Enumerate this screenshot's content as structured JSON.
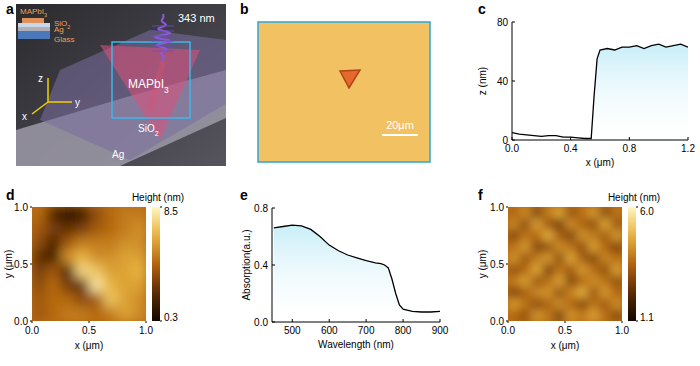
{
  "panel_labels": [
    "a",
    "b",
    "c",
    "d",
    "e",
    "f"
  ],
  "schematic": {
    "wavelength_label": "343 nm",
    "stack_labels": [
      "MAPbI3",
      "SiO2",
      "Ag",
      "Glass"
    ],
    "axis_labels": [
      "z",
      "x",
      "y"
    ],
    "region_labels": [
      "MAPbI3",
      "SiO2",
      "Ag"
    ]
  },
  "microscope": {
    "scale_bar": "20μm"
  },
  "chart_data": [
    {
      "type": "line",
      "x_label": "x (μm)",
      "y_label": "z (nm)",
      "x": [
        0,
        0.05,
        0.1,
        0.15,
        0.2,
        0.25,
        0.3,
        0.35,
        0.4,
        0.45,
        0.5,
        0.54,
        0.56,
        0.58,
        0.6,
        0.65,
        0.7,
        0.75,
        0.8,
        0.85,
        0.9,
        0.95,
        1.0,
        1.05,
        1.1,
        1.15,
        1.2
      ],
      "values": [
        5,
        4,
        3.5,
        3,
        2.5,
        3,
        3,
        2,
        2,
        1.5,
        1,
        1,
        30,
        55,
        61,
        62,
        61,
        63,
        63,
        64,
        62,
        64,
        65,
        63,
        64,
        65,
        63
      ],
      "color": "#000000",
      "xlim": [
        0,
        1.2
      ],
      "xticks": [
        {
          "value": 0,
          "label": "0.0"
        },
        0.4,
        0.8,
        1.2
      ],
      "ylim": [
        0,
        80
      ],
      "yticks": [
        0,
        40,
        80
      ]
    },
    {
      "type": "heatmap",
      "x_label": "x (μm)",
      "y_label": "y (μm)",
      "xlim": [
        0,
        1
      ],
      "xticks": [
        {
          "value": 0,
          "label": "0.0"
        },
        0.5,
        {
          "value": 1,
          "label": "1.0"
        }
      ],
      "ylim": [
        0,
        1
      ],
      "yticks": [
        {
          "value": 0,
          "label": "0.0"
        },
        0.5,
        {
          "value": 1,
          "label": "1.0"
        }
      ],
      "cells": [
        [
          4.5,
          2.0,
          1.0,
          1.5,
          3.5,
          4.5,
          5.0,
          5.0
        ],
        [
          4.0,
          3.0,
          2.5,
          3.0,
          4.0,
          4.5,
          5.0,
          5.5
        ],
        [
          3.5,
          2.0,
          4.0,
          5.0,
          5.0,
          5.0,
          5.5,
          5.5
        ],
        [
          2.5,
          1.5,
          5.5,
          6.5,
          5.5,
          5.5,
          6.0,
          6.0
        ],
        [
          3.0,
          4.0,
          2.0,
          7.5,
          7.0,
          6.0,
          6.0,
          6.5
        ],
        [
          3.5,
          4.5,
          3.0,
          2.5,
          8.0,
          6.5,
          6.0,
          6.0
        ],
        [
          4.0,
          4.5,
          4.5,
          3.5,
          4.0,
          7.0,
          6.0,
          5.5
        ],
        [
          4.0,
          4.5,
          5.0,
          5.0,
          4.5,
          5.0,
          6.0,
          5.5
        ]
      ],
      "colorbar": {
        "title": "Height (nm)",
        "range": [
          0.3,
          8.5
        ],
        "ticks": [
          0.3,
          8.5
        ]
      }
    },
    {
      "type": "line",
      "x_label": "Wavelength (nm)",
      "y_label": "Absorption(a.u.)",
      "x": [
        450,
        475,
        500,
        525,
        550,
        575,
        600,
        625,
        650,
        675,
        700,
        725,
        740,
        750,
        760,
        770,
        780,
        790,
        800,
        825,
        850,
        875,
        900
      ],
      "values": [
        0.66,
        0.67,
        0.68,
        0.675,
        0.65,
        0.6,
        0.54,
        0.5,
        0.47,
        0.45,
        0.43,
        0.415,
        0.41,
        0.4,
        0.38,
        0.3,
        0.2,
        0.12,
        0.09,
        0.075,
        0.07,
        0.07,
        0.075
      ],
      "color": "#000000",
      "xlim": [
        445,
        900
      ],
      "xticks": [
        500,
        600,
        700,
        800,
        900
      ],
      "ylim": [
        0,
        0.8
      ],
      "yticks": [
        {
          "value": 0,
          "label": "0.0"
        },
        0.4,
        0.8
      ]
    },
    {
      "type": "heatmap",
      "x_label": "x (μm)",
      "y_label": "y (μm)",
      "xlim": [
        0,
        1
      ],
      "xticks": [
        {
          "value": 0,
          "label": "0.0"
        },
        0.5,
        {
          "value": 1,
          "label": "1.0"
        }
      ],
      "ylim": [
        0,
        1
      ],
      "yticks": [
        {
          "value": 0,
          "label": "0.0"
        },
        0.5,
        {
          "value": 1,
          "label": "1.0"
        }
      ],
      "cells": [
        [
          3.5,
          4.2,
          2.8,
          3.9,
          4.6,
          3.1,
          3.7,
          4.4,
          2.9,
          3.8
        ],
        [
          4.1,
          3.0,
          4.5,
          3.3,
          2.7,
          4.2,
          3.5,
          3.0,
          4.6,
          3.2
        ],
        [
          2.9,
          3.8,
          3.6,
          4.7,
          3.4,
          2.8,
          4.3,
          3.9,
          3.3,
          4.4
        ],
        [
          3.7,
          4.4,
          2.9,
          3.1,
          4.2,
          3.8,
          3.0,
          4.5,
          3.6,
          2.8
        ],
        [
          4.3,
          3.2,
          3.9,
          4.4,
          3.0,
          4.6,
          3.4,
          2.9,
          4.1,
          3.7
        ],
        [
          3.1,
          3.6,
          4.6,
          2.8,
          3.8,
          3.3,
          4.4,
          3.7,
          3.0,
          4.5
        ],
        [
          3.9,
          4.5,
          3.2,
          3.7,
          4.5,
          2.9,
          3.6,
          4.2,
          3.8,
          3.1
        ],
        [
          2.8,
          3.4,
          4.1,
          4.3,
          3.1,
          4.0,
          4.7,
          3.2,
          4.4,
          3.6
        ],
        [
          4.4,
          3.8,
          3.0,
          3.5,
          4.2,
          3.6,
          2.9,
          3.8,
          3.3,
          4.2
        ],
        [
          3.6,
          3.1,
          4.3,
          3.9,
          2.8,
          4.3,
          3.9,
          4.5,
          3.7,
          3.0
        ]
      ],
      "colorbar": {
        "title": "Height (nm)",
        "range": [
          1.1,
          6.0
        ],
        "ticks": [
          1.1,
          {
            "value": 6,
            "label": "6.0"
          }
        ]
      }
    }
  ]
}
